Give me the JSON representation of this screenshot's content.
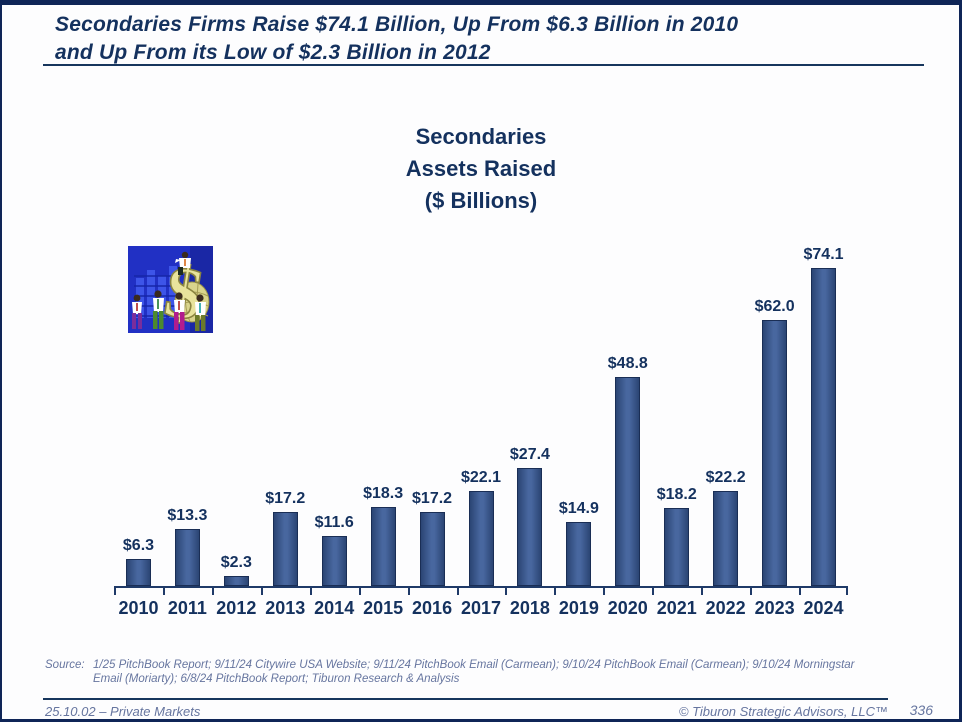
{
  "header": {
    "title_line1": "Secondaries Firms Raise $74.1 Billion, Up From $6.3 Billion in 2010",
    "title_line2": "and Up From its Low of $2.3 Billion in 2012"
  },
  "chart": {
    "title_lines": [
      "Secondaries",
      "Assets Raised",
      "($ Billions)"
    ]
  },
  "chart_data": {
    "type": "bar",
    "title": "Secondaries Assets Raised ($ Billions)",
    "categories": [
      "2010",
      "2011",
      "2012",
      "2013",
      "2014",
      "2015",
      "2016",
      "2017",
      "2018",
      "2019",
      "2020",
      "2021",
      "2022",
      "2023",
      "2024"
    ],
    "values": [
      6.3,
      13.3,
      2.3,
      17.2,
      11.6,
      18.3,
      17.2,
      22.1,
      27.4,
      14.9,
      48.8,
      18.2,
      22.2,
      62.0,
      74.1
    ],
    "value_labels": [
      "$6.3",
      "$13.3",
      "$2.3",
      "$17.2",
      "$11.6",
      "$18.3",
      "$17.2",
      "$22.1",
      "$27.4",
      "$14.9",
      "$48.8",
      "$18.2",
      "$22.2",
      "$62.0",
      "$74.1"
    ],
    "xlabel": "",
    "ylabel": "",
    "ylim": [
      0,
      74.1
    ],
    "y_axis_visible": false,
    "grid": false,
    "legend": false,
    "bar_fill_center": "#48679f",
    "bar_fill_edge": "#2b4574",
    "bar_border": "#1a2e55",
    "label_color": "#14315e"
  },
  "clipart_name": "dollar-sign-with-businesspeople-clipart",
  "source": {
    "label": "Source:",
    "lines": [
      "1/25 PitchBook Report; 9/11/24 Citywire USA Website; 9/11/24 PitchBook Email (Carmean); 9/10/24 PitchBook Email (Carmean); 9/10/24 Morningstar",
      "Email (Moriarty); 6/8/24 PitchBook Report; Tiburon Research & Analysis"
    ]
  },
  "footer": {
    "left": "25.10.02 – Private Markets",
    "right": "© Tiburon Strategic Advisors, LLC™",
    "page_number": "336"
  },
  "colors": {
    "navy_text": "#14315e",
    "rule_navy": "#17365d",
    "muted_blue_gray": "#66759f",
    "slide_border": "#0f2557"
  }
}
